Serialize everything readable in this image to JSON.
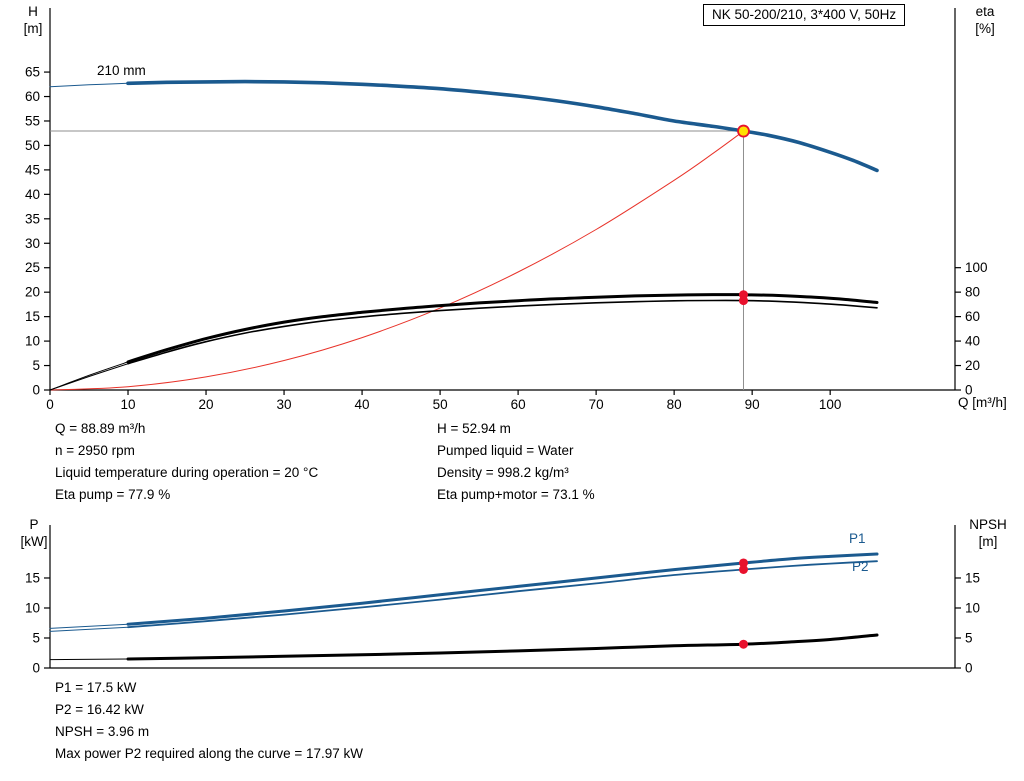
{
  "header": {
    "title_box": "NK 50-200/210, 3*400 V, 50Hz"
  },
  "axes_labels": {
    "h_1": "H",
    "h_2": "[m]",
    "eta_1": "eta",
    "eta_2": "[%]",
    "q": "Q [m³/h]",
    "p_1": "P",
    "p_2": "[kW]",
    "npsh_1": "NPSH",
    "npsh_2": "[m]"
  },
  "curve_labels": {
    "impeller": "210 mm",
    "p1": "P1",
    "p2": "P2"
  },
  "info_top": {
    "left": [
      "Q = 88.89 m³/h",
      "n = 2950 rpm",
      "Liquid temperature during operation = 20 °C",
      "Eta pump = 77.9 %"
    ],
    "right": [
      "H = 52.94 m",
      "Pumped liquid = Water",
      "Density = 998.2 kg/m³",
      "Eta pump+motor = 73.1 %"
    ]
  },
  "info_bottom": [
    "P1 = 17.5 kW",
    "P2 = 16.42 kW",
    "NPSH = 3.96 m",
    "Max power P2 required along the curve = 17.97 kW"
  ],
  "colors": {
    "curve_blue": "#1b5a8f",
    "curve_black": "#000000",
    "system_red": "#e8332a",
    "marker_red": "#e8112d",
    "marker_yellow": "#ffe000",
    "ref_gray": "#8f8f8f",
    "axis_black": "#000000"
  },
  "chart_data": [
    {
      "type": "line",
      "title": "NK 50-200/210, 3*400 V, 50Hz",
      "xlabel": "Q [m³/h]",
      "ylabel_left": "H [m]",
      "ylabel_right": "eta [%]",
      "xlim": [
        0,
        116
      ],
      "xticks": [
        0,
        10,
        20,
        30,
        40,
        50,
        60,
        70,
        80,
        90,
        100
      ],
      "ylim_left": [
        0,
        78.1
      ],
      "yticks_left": [
        0,
        5,
        10,
        15,
        20,
        25,
        30,
        35,
        40,
        45,
        50,
        55,
        60,
        65
      ],
      "ylim_right": [
        0,
        312.3
      ],
      "yticks_right": [
        0,
        20,
        40,
        60,
        80,
        100
      ],
      "duty_point": {
        "Q": 88.89,
        "H": 52.94,
        "eta_pump": 77.9,
        "eta_pump_motor": 73.1
      },
      "series": [
        {
          "name": "head-210mm",
          "axis": "left",
          "color": "#1b5a8f",
          "width": 3.6,
          "thin_until": 10,
          "points": [
            [
              0,
              62.0
            ],
            [
              5,
              62.4
            ],
            [
              10,
              62.7
            ],
            [
              15,
              62.9
            ],
            [
              20,
              63.0
            ],
            [
              25,
              63.05
            ],
            [
              30,
              63.0
            ],
            [
              35,
              62.8
            ],
            [
              40,
              62.5
            ],
            [
              45,
              62.1
            ],
            [
              50,
              61.6
            ],
            [
              55,
              60.9
            ],
            [
              60,
              60.1
            ],
            [
              65,
              59.1
            ],
            [
              70,
              57.9
            ],
            [
              75,
              56.5
            ],
            [
              80,
              55.0
            ],
            [
              85,
              53.9
            ],
            [
              88.89,
              52.94
            ],
            [
              92,
              52.1
            ],
            [
              96,
              50.6
            ],
            [
              100,
              48.6
            ],
            [
              103,
              46.9
            ],
            [
              106,
              44.9
            ]
          ]
        },
        {
          "name": "system-curve",
          "axis": "left",
          "color": "#e8332a",
          "width": 1,
          "thin_until": null,
          "points": [
            [
              0,
              0
            ],
            [
              10,
              0.67
            ],
            [
              20,
              2.68
            ],
            [
              30,
              6.03
            ],
            [
              40,
              10.72
            ],
            [
              50,
              16.75
            ],
            [
              60,
              24.12
            ],
            [
              70,
              32.82
            ],
            [
              80,
              42.87
            ],
            [
              85,
              48.39
            ],
            [
              88.89,
              52.94
            ]
          ]
        },
        {
          "name": "eta-pump",
          "axis": "right",
          "color": "#000000",
          "width": 3,
          "thin_until": 10,
          "points": [
            [
              0,
              0
            ],
            [
              5,
              12
            ],
            [
              10,
              23
            ],
            [
              15,
              33
            ],
            [
              20,
              42
            ],
            [
              25,
              49.5
            ],
            [
              30,
              55.5
            ],
            [
              35,
              60
            ],
            [
              40,
              63.5
            ],
            [
              45,
              66.5
            ],
            [
              50,
              69
            ],
            [
              55,
              71.2
            ],
            [
              60,
              73
            ],
            [
              65,
              74.6
            ],
            [
              70,
              75.9
            ],
            [
              75,
              76.9
            ],
            [
              80,
              77.6
            ],
            [
              85,
              78.0
            ],
            [
              88.89,
              77.9
            ],
            [
              93,
              77.3
            ],
            [
              98,
              75.8
            ],
            [
              102,
              74.0
            ],
            [
              106,
              71.5
            ]
          ]
        },
        {
          "name": "eta-pump-motor",
          "axis": "right",
          "color": "#000000",
          "width": 1.6,
          "thin_until": 10,
          "points": [
            [
              0,
              0
            ],
            [
              5,
              11
            ],
            [
              10,
              21.5
            ],
            [
              15,
              31
            ],
            [
              20,
              39.5
            ],
            [
              25,
              46.5
            ],
            [
              30,
              52
            ],
            [
              35,
              56.5
            ],
            [
              40,
              59.8
            ],
            [
              45,
              62.6
            ],
            [
              50,
              64.9
            ],
            [
              55,
              66.9
            ],
            [
              60,
              68.6
            ],
            [
              65,
              70.1
            ],
            [
              70,
              71.3
            ],
            [
              75,
              72.2
            ],
            [
              80,
              72.9
            ],
            [
              85,
              73.2
            ],
            [
              88.89,
              73.1
            ],
            [
              93,
              72.5
            ],
            [
              98,
              71.0
            ],
            [
              102,
              69.3
            ],
            [
              106,
              67.2
            ]
          ]
        }
      ],
      "ref_lines": [
        {
          "dir": "h",
          "axis": "left",
          "at": 52.94,
          "from": 0,
          "to": 88.89
        },
        {
          "dir": "v",
          "axis": "left",
          "at": 88.89,
          "from": 0,
          "to": 52.94
        }
      ],
      "markers": [
        {
          "x": 88.89,
          "y": 52.94,
          "axis": "left",
          "r": 5.5,
          "fill": "#ffe000",
          "stroke": "#e8112d",
          "sw": 1.8,
          "name": "duty-point-marker"
        },
        {
          "x": 88.89,
          "y": 77.9,
          "axis": "right",
          "r": 4.5,
          "fill": "#e8112d",
          "stroke": "none",
          "sw": 0,
          "name": "eta-pump-duty-dot"
        },
        {
          "x": 88.89,
          "y": 73.1,
          "axis": "right",
          "r": 4.5,
          "fill": "#e8112d",
          "stroke": "none",
          "sw": 0,
          "name": "eta-pump-motor-duty-dot"
        }
      ]
    },
    {
      "type": "line",
      "title": "",
      "xlabel": "",
      "ylabel_left": "P [kW]",
      "ylabel_right": "NPSH [m]",
      "xlim": [
        0,
        116
      ],
      "xticks": [],
      "ylim_left": [
        0,
        23.83
      ],
      "yticks_left": [
        0,
        5,
        10,
        15
      ],
      "ylim_right": [
        0,
        23.83
      ],
      "yticks_right": [
        0,
        5,
        10,
        15
      ],
      "duty_point": {
        "Q": 88.89,
        "P1": 17.5,
        "P2": 16.42,
        "NPSH": 3.96
      },
      "series": [
        {
          "name": "P1",
          "axis": "left",
          "color": "#1b5a8f",
          "width": 3,
          "thin_until": 10,
          "points": [
            [
              0,
              6.6
            ],
            [
              10,
              7.3
            ],
            [
              20,
              8.3
            ],
            [
              30,
              9.5
            ],
            [
              40,
              10.8
            ],
            [
              50,
              12.2
            ],
            [
              60,
              13.6
            ],
            [
              70,
              15.0
            ],
            [
              80,
              16.4
            ],
            [
              88.89,
              17.5
            ],
            [
              95,
              18.2
            ],
            [
              100,
              18.6
            ],
            [
              106,
              19.0
            ]
          ]
        },
        {
          "name": "P2",
          "axis": "left",
          "color": "#1b5a8f",
          "width": 1.8,
          "thin_until": 10,
          "points": [
            [
              0,
              6.1
            ],
            [
              10,
              6.8
            ],
            [
              20,
              7.8
            ],
            [
              30,
              8.9
            ],
            [
              40,
              10.1
            ],
            [
              50,
              11.4
            ],
            [
              60,
              12.8
            ],
            [
              70,
              14.1
            ],
            [
              80,
              15.5
            ],
            [
              88.89,
              16.42
            ],
            [
              95,
              17.0
            ],
            [
              100,
              17.4
            ],
            [
              106,
              17.8
            ]
          ]
        },
        {
          "name": "NPSH",
          "axis": "right",
          "color": "#000000",
          "width": 3,
          "thin_until": 10,
          "points": [
            [
              0,
              1.4
            ],
            [
              10,
              1.5
            ],
            [
              20,
              1.7
            ],
            [
              30,
              1.95
            ],
            [
              40,
              2.2
            ],
            [
              50,
              2.5
            ],
            [
              60,
              2.85
            ],
            [
              70,
              3.25
            ],
            [
              80,
              3.7
            ],
            [
              88.89,
              3.96
            ],
            [
              95,
              4.35
            ],
            [
              100,
              4.75
            ],
            [
              106,
              5.5
            ]
          ]
        }
      ],
      "ref_lines": [],
      "markers": [
        {
          "x": 88.89,
          "y": 17.5,
          "axis": "left",
          "r": 4.5,
          "fill": "#e8112d",
          "stroke": "none",
          "sw": 0,
          "name": "p1-duty-dot"
        },
        {
          "x": 88.89,
          "y": 16.42,
          "axis": "left",
          "r": 4.5,
          "fill": "#e8112d",
          "stroke": "none",
          "sw": 0,
          "name": "p2-duty-dot"
        },
        {
          "x": 88.89,
          "y": 3.96,
          "axis": "right",
          "r": 4.5,
          "fill": "#e8112d",
          "stroke": "none",
          "sw": 0,
          "name": "npsh-duty-dot"
        }
      ]
    }
  ]
}
